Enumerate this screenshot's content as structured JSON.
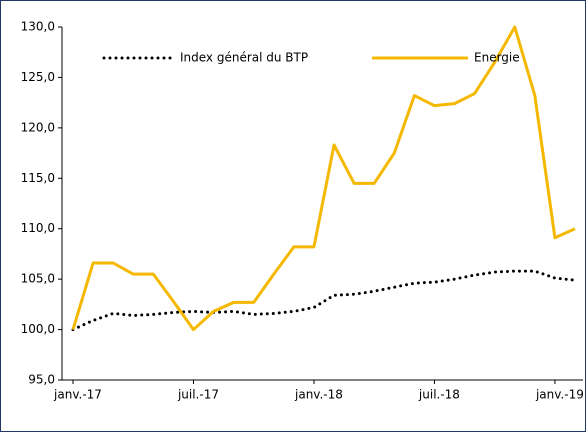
{
  "chart_data": {
    "type": "line",
    "categories": [
      "janv.-17",
      null,
      null,
      null,
      null,
      null,
      "juil.-17",
      null,
      null,
      null,
      null,
      null,
      "janv.-18",
      null,
      null,
      null,
      null,
      null,
      "juil.-18",
      null,
      null,
      null,
      null,
      null,
      "janv.-19",
      null
    ],
    "series": [
      {
        "name": "Index général du BTP",
        "color": "#000000",
        "style": "dotted",
        "values": [
          100.0,
          100.9,
          101.6,
          101.4,
          101.5,
          101.7,
          101.8,
          101.7,
          101.8,
          101.5,
          101.6,
          101.8,
          102.2,
          103.4,
          103.5,
          103.8,
          104.2,
          104.6,
          104.7,
          105.0,
          105.4,
          105.7,
          105.8,
          105.8,
          105.1,
          104.9
        ]
      },
      {
        "name": "Energie",
        "color": "#f5b800",
        "style": "solid",
        "values": [
          100.0,
          106.6,
          106.6,
          105.5,
          105.5,
          102.8,
          100.0,
          101.8,
          102.7,
          102.7,
          105.5,
          108.2,
          108.2,
          118.3,
          114.5,
          114.5,
          117.5,
          123.2,
          122.2,
          122.4,
          123.4,
          126.5,
          130.0,
          123.2,
          109.1,
          110.0
        ]
      }
    ],
    "ylim": [
      95,
      130
    ],
    "yticks": [
      {
        "value": 95,
        "label": "95,0"
      },
      {
        "value": 100,
        "label": "100,0"
      },
      {
        "value": 105,
        "label": "105,0"
      },
      {
        "value": 110,
        "label": "110,0"
      },
      {
        "value": 115,
        "label": "115,0"
      },
      {
        "value": 120,
        "label": "120,0"
      },
      {
        "value": 125,
        "label": "125,0"
      },
      {
        "value": 130,
        "label": "130,0"
      }
    ],
    "legend": "top"
  }
}
